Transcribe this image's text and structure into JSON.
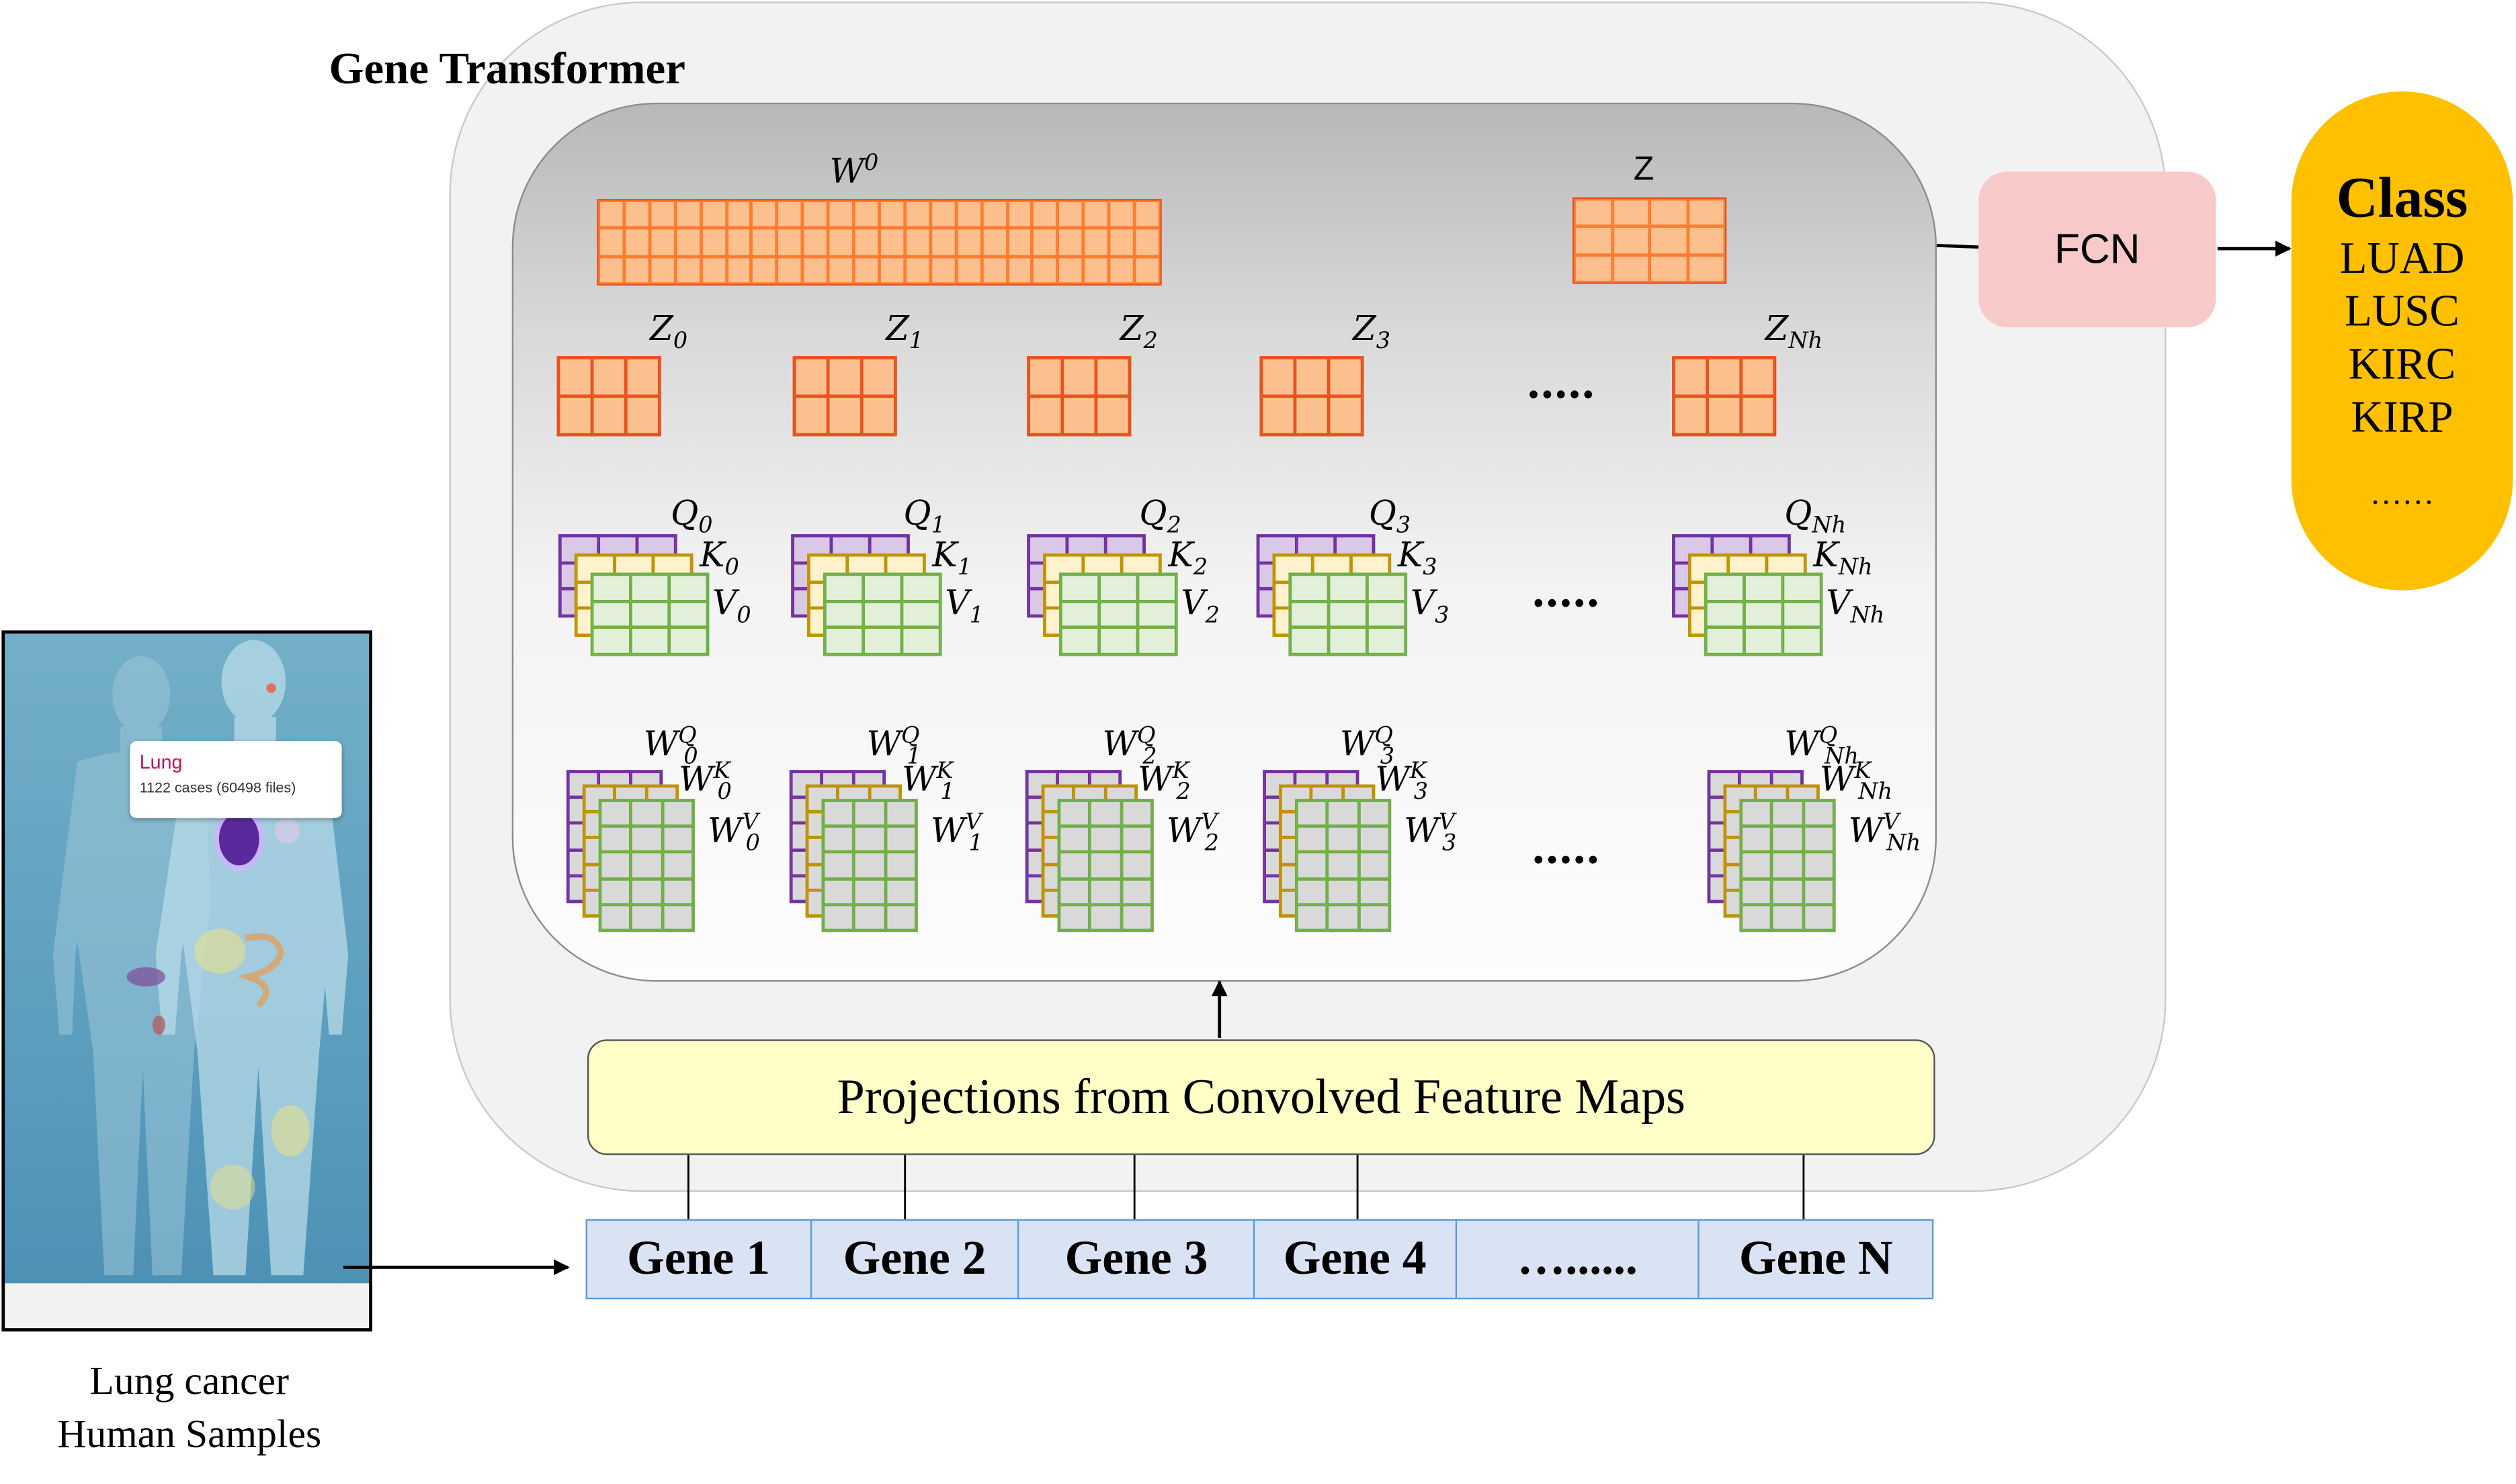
{
  "title": "Gene Transformer",
  "top_row": {
    "w0_label": "W",
    "w0_sup": "0",
    "z_label": "Z"
  },
  "heads": [
    {
      "z": "Z",
      "z_sub": "0",
      "q": "Q",
      "k": "K",
      "v": "V",
      "sub": "0",
      "wq": "W",
      "wk": "W",
      "wv": "W",
      "wsub": "0"
    },
    {
      "z": "Z",
      "z_sub": "1",
      "q": "Q",
      "k": "K",
      "v": "V",
      "sub": "1",
      "wq": "W",
      "wk": "W",
      "wv": "W",
      "wsub": "1"
    },
    {
      "z": "Z",
      "z_sub": "2",
      "q": "Q",
      "k": "K",
      "v": "V",
      "sub": "2",
      "wq": "W",
      "wk": "W",
      "wv": "W",
      "wsub": "2"
    },
    {
      "z": "Z",
      "z_sub": "3",
      "q": "Q",
      "k": "K",
      "v": "V",
      "sub": "3",
      "wq": "W",
      "wk": "W",
      "wv": "W",
      "wsub": "3"
    },
    {
      "z": "Z",
      "z_sub": "Nh",
      "q": "Q",
      "k": "K",
      "v": "V",
      "sub": "Nh",
      "wq": "W",
      "wk": "W",
      "wv": "W",
      "wsub": "Nh"
    }
  ],
  "superscripts": {
    "q": "Q",
    "k": "K",
    "v": "V"
  },
  "ellipsis": ".....",
  "projection_label": "Projections from Convolved Feature Maps",
  "genes": [
    "Gene 1",
    "Gene 2",
    "Gene 3",
    "Gene 4",
    "…......",
    "Gene N"
  ],
  "fcn_label": "FCN",
  "class_box": {
    "title": "Class",
    "items": [
      "LUAD",
      "LUSC",
      "KIRC",
      "KIRP"
    ],
    "more": "……"
  },
  "photo": {
    "tooltip_title": "Lung",
    "tooltip_sub": "1122 cases (60498 files)"
  },
  "caption": {
    "line1": "Lung cancer",
    "line2": "Human Samples"
  },
  "colors": {
    "orange": "#fcc08e",
    "purple": "#7030a0",
    "yellow": "#ffe699",
    "green": "#70ad47",
    "class": "#ffc000",
    "fcn": "#f8c9c9"
  }
}
